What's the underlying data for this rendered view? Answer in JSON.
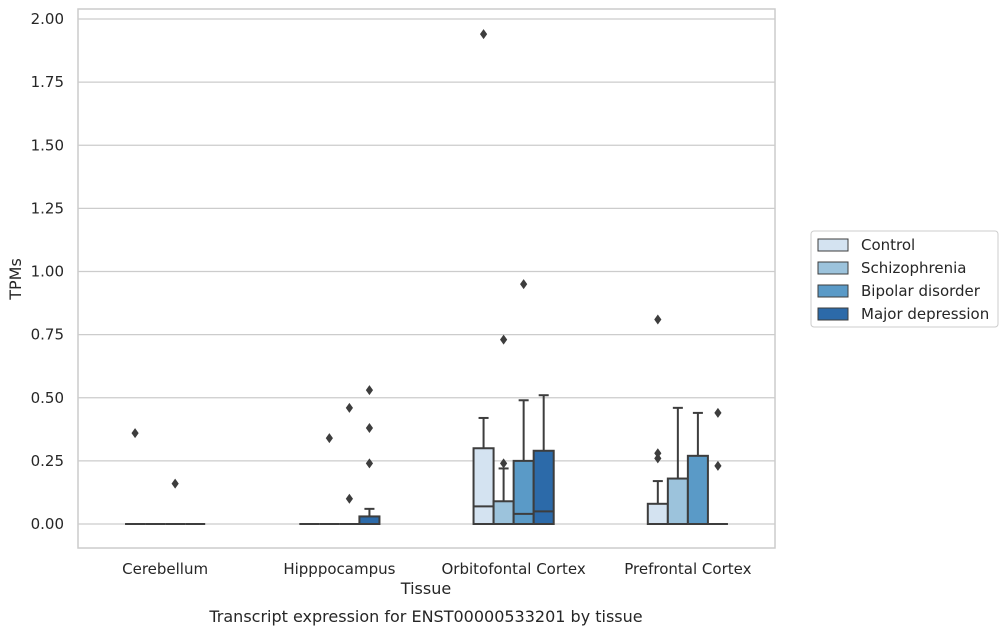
{
  "chart_data": {
    "type": "box",
    "xlabel": "Tissue",
    "ylabel": "TPMs",
    "caption": "Transcript expression for ENST00000533201 by tissue",
    "ylim": [
      -0.1,
      2.03
    ],
    "yticks": [
      "0.00",
      "0.25",
      "0.50",
      "0.75",
      "1.00",
      "1.25",
      "1.50",
      "1.75",
      "2.00"
    ],
    "grid": "horizontal",
    "legend_position": "right",
    "categories": [
      "Cerebellum",
      "Hipppocampus",
      "Orbitofontal Cortex",
      "Prefrontal Cortex"
    ],
    "series": [
      {
        "name": "Control",
        "color": "#d4e3f1",
        "boxes": [
          {
            "q1": 0,
            "median": 0,
            "q3": 0,
            "whisker_low": 0,
            "whisker_high": 0,
            "outliers": [
              0.36
            ]
          },
          {
            "q1": 0,
            "median": 0,
            "q3": 0,
            "whisker_low": 0,
            "whisker_high": 0,
            "outliers": []
          },
          {
            "q1": 0,
            "median": 0.07,
            "q3": 0.3,
            "whisker_low": 0,
            "whisker_high": 0.42,
            "outliers": [
              1.94
            ]
          },
          {
            "q1": 0,
            "median": 0,
            "q3": 0.08,
            "whisker_low": 0,
            "whisker_high": 0.17,
            "outliers": [
              0.26,
              0.28,
              0.81
            ]
          }
        ]
      },
      {
        "name": "Schizophrenia",
        "color": "#9cc3dc",
        "boxes": [
          {
            "q1": 0,
            "median": 0,
            "q3": 0,
            "whisker_low": 0,
            "whisker_high": 0,
            "outliers": []
          },
          {
            "q1": 0,
            "median": 0,
            "q3": 0,
            "whisker_low": 0,
            "whisker_high": 0,
            "outliers": [
              0.34
            ]
          },
          {
            "q1": 0,
            "median": 0,
            "q3": 0.09,
            "whisker_low": 0,
            "whisker_high": 0.22,
            "outliers": [
              0.24,
              0.73
            ]
          },
          {
            "q1": 0,
            "median": 0,
            "q3": 0.18,
            "whisker_low": 0,
            "whisker_high": 0.46,
            "outliers": []
          }
        ]
      },
      {
        "name": "Bipolar disorder",
        "color": "#5a9ac7",
        "boxes": [
          {
            "q1": 0,
            "median": 0,
            "q3": 0,
            "whisker_low": 0,
            "whisker_high": 0,
            "outliers": [
              0.16
            ]
          },
          {
            "q1": 0,
            "median": 0,
            "q3": 0,
            "whisker_low": 0,
            "whisker_high": 0,
            "outliers": [
              0.1,
              0.46
            ]
          },
          {
            "q1": 0,
            "median": 0.04,
            "q3": 0.25,
            "whisker_low": 0,
            "whisker_high": 0.49,
            "outliers": [
              0.95
            ]
          },
          {
            "q1": 0,
            "median": 0,
            "q3": 0.27,
            "whisker_low": 0,
            "whisker_high": 0.44,
            "outliers": []
          }
        ]
      },
      {
        "name": "Major depression",
        "color": "#2c6aa9",
        "boxes": [
          {
            "q1": 0,
            "median": 0,
            "q3": 0,
            "whisker_low": 0,
            "whisker_high": 0,
            "outliers": []
          },
          {
            "q1": 0,
            "median": 0,
            "q3": 0.03,
            "whisker_low": 0,
            "whisker_high": 0.06,
            "outliers": [
              0.24,
              0.38,
              0.53
            ]
          },
          {
            "q1": 0,
            "median": 0.05,
            "q3": 0.29,
            "whisker_low": 0,
            "whisker_high": 0.51,
            "outliers": []
          },
          {
            "q1": 0,
            "median": 0,
            "q3": 0,
            "whisker_low": 0,
            "whisker_high": 0,
            "outliers": [
              0.23,
              0.44
            ]
          }
        ]
      }
    ]
  }
}
